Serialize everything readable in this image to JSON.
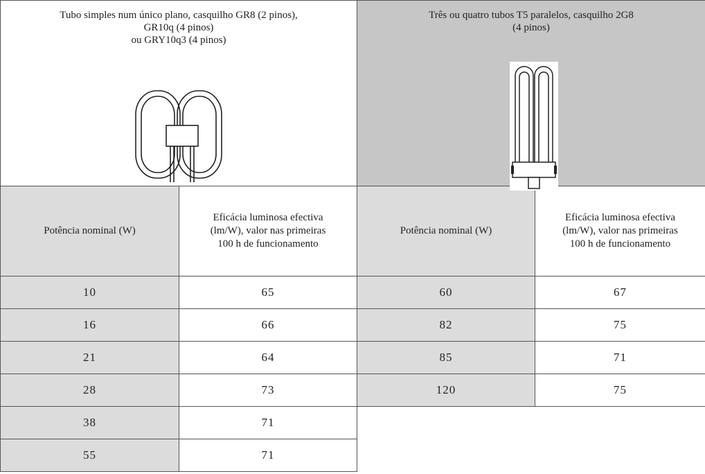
{
  "table": {
    "groups": [
      {
        "title_lines": [
          "Tubo simples num único plano, casquilho GR8 (2 pinos),",
          "GR10q (4 pinos)",
          "ou GRY10q3 (4 pinos)"
        ]
      },
      {
        "title_lines": [
          "Três ou quatro tubos T5 paralelos, casquilho 2G8",
          "(4 pinos)"
        ]
      }
    ],
    "column_headers": [
      {
        "lines": [
          "Potência nominal (W)"
        ]
      },
      {
        "lines": [
          "Eficácia luminosa efectiva",
          "(lm/W), valor nas primeiras",
          "100 h de funcionamento"
        ]
      },
      {
        "lines": [
          "Potência nominal (W)"
        ]
      },
      {
        "lines": [
          "Eficácia luminosa efectiva",
          "(lm/W), valor nas primeiras",
          "100 h de funcionamento"
        ]
      }
    ],
    "rows_left": [
      [
        10,
        65
      ],
      [
        16,
        66
      ],
      [
        21,
        64
      ],
      [
        28,
        73
      ],
      [
        38,
        71
      ],
      [
        55,
        71
      ]
    ],
    "rows_right": [
      [
        60,
        67
      ],
      [
        82,
        75
      ],
      [
        85,
        71
      ],
      [
        120,
        75
      ]
    ]
  }
}
